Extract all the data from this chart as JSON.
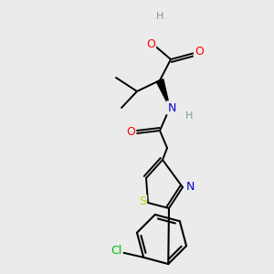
{
  "bg_color": "#ebebeb",
  "atom_colors": {
    "O": "#ff0000",
    "N": "#0000cc",
    "S": "#cccc00",
    "Cl": "#00bb00",
    "H": "#7a9a9a",
    "C": "#000000"
  }
}
